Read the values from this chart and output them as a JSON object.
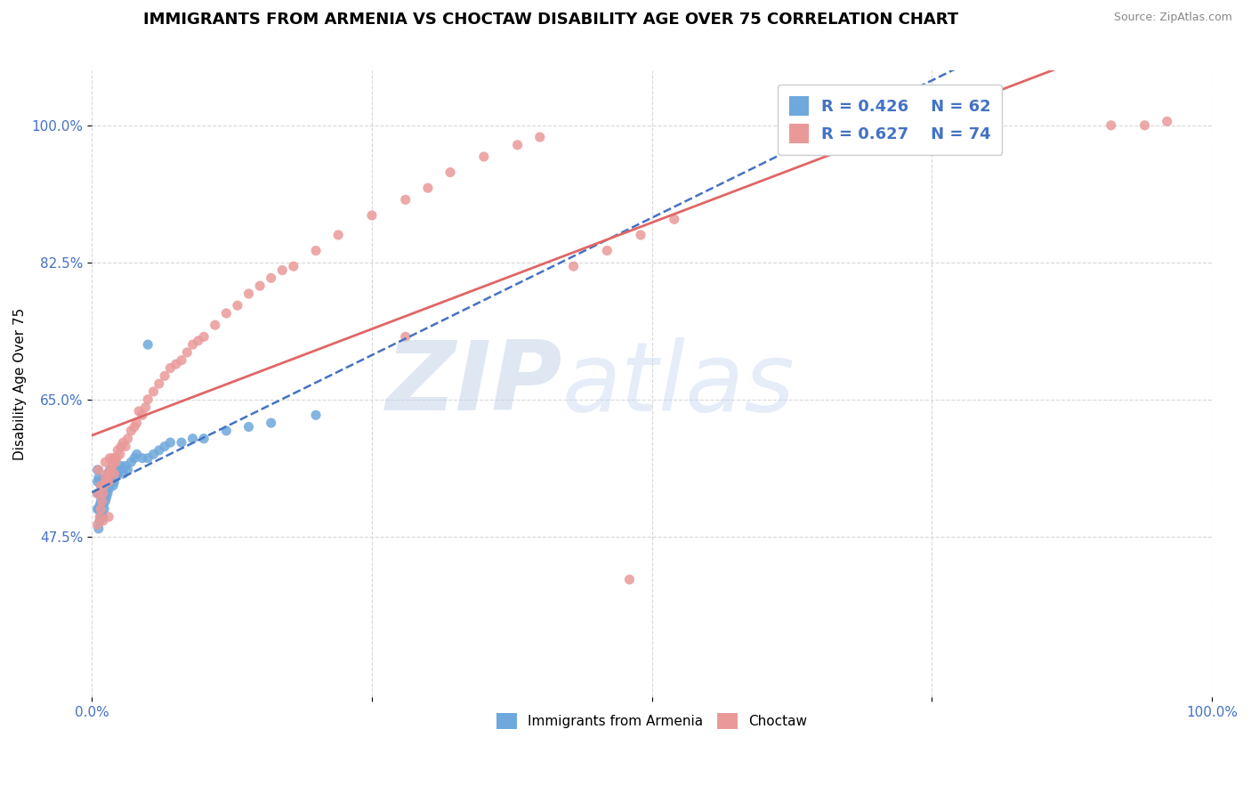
{
  "title": "IMMIGRANTS FROM ARMENIA VS CHOCTAW DISABILITY AGE OVER 75 CORRELATION CHART",
  "source_text": "Source: ZipAtlas.com",
  "ylabel": "Disability Age Over 75",
  "xlim": [
    0.0,
    1.0
  ],
  "ylim": [
    0.27,
    1.07
  ],
  "yticks": [
    0.475,
    0.65,
    0.825,
    1.0
  ],
  "ytick_labels": [
    "47.5%",
    "65.0%",
    "82.5%",
    "100.0%"
  ],
  "xtick_labels": [
    "0.0%",
    "",
    "",
    "",
    "100.0%"
  ],
  "legend_R1": "R = 0.426",
  "legend_N1": "N = 62",
  "legend_R2": "R = 0.627",
  "legend_N2": "N = 74",
  "color_blue": "#6fa8dc",
  "color_pink": "#ea9999",
  "color_blue_line": "#4472c4",
  "color_pink_line": "#e06666",
  "legend_text_color": "#4472c4",
  "axis_color": "#4472c4",
  "grid_color": "#c8c8c8",
  "title_fontsize": 13,
  "axis_label_fontsize": 11,
  "tick_fontsize": 11,
  "blue_x": [
    0.005,
    0.005,
    0.005,
    0.005,
    0.006,
    0.006,
    0.006,
    0.006,
    0.007,
    0.007,
    0.008,
    0.008,
    0.008,
    0.009,
    0.009,
    0.009,
    0.01,
    0.01,
    0.01,
    0.01,
    0.011,
    0.011,
    0.012,
    0.012,
    0.013,
    0.013,
    0.014,
    0.014,
    0.015,
    0.015,
    0.016,
    0.016,
    0.017,
    0.018,
    0.019,
    0.02,
    0.02,
    0.021,
    0.022,
    0.023,
    0.025,
    0.026,
    0.028,
    0.03,
    0.032,
    0.035,
    0.038,
    0.04,
    0.045,
    0.05,
    0.055,
    0.06,
    0.065,
    0.07,
    0.08,
    0.09,
    0.1,
    0.12,
    0.14,
    0.16,
    0.2,
    0.05
  ],
  "blue_y": [
    0.51,
    0.53,
    0.545,
    0.56,
    0.485,
    0.51,
    0.53,
    0.55,
    0.495,
    0.515,
    0.5,
    0.52,
    0.54,
    0.505,
    0.525,
    0.545,
    0.5,
    0.515,
    0.53,
    0.548,
    0.51,
    0.535,
    0.52,
    0.545,
    0.525,
    0.55,
    0.53,
    0.555,
    0.535,
    0.555,
    0.54,
    0.56,
    0.545,
    0.55,
    0.54,
    0.545,
    0.56,
    0.555,
    0.56,
    0.555,
    0.56,
    0.565,
    0.555,
    0.565,
    0.56,
    0.57,
    0.575,
    0.58,
    0.575,
    0.575,
    0.58,
    0.585,
    0.59,
    0.595,
    0.595,
    0.6,
    0.6,
    0.61,
    0.615,
    0.62,
    0.63,
    0.72
  ],
  "pink_x": [
    0.005,
    0.005,
    0.006,
    0.007,
    0.008,
    0.008,
    0.009,
    0.01,
    0.01,
    0.011,
    0.012,
    0.012,
    0.013,
    0.014,
    0.015,
    0.015,
    0.016,
    0.016,
    0.017,
    0.018,
    0.019,
    0.02,
    0.02,
    0.021,
    0.022,
    0.023,
    0.025,
    0.026,
    0.028,
    0.03,
    0.032,
    0.035,
    0.038,
    0.04,
    0.042,
    0.045,
    0.048,
    0.05,
    0.055,
    0.06,
    0.065,
    0.07,
    0.075,
    0.08,
    0.085,
    0.09,
    0.095,
    0.1,
    0.11,
    0.12,
    0.13,
    0.14,
    0.15,
    0.16,
    0.17,
    0.18,
    0.2,
    0.22,
    0.25,
    0.28,
    0.3,
    0.32,
    0.35,
    0.38,
    0.4,
    0.43,
    0.46,
    0.49,
    0.52,
    0.28,
    0.91,
    0.94,
    0.96,
    0.48
  ],
  "pink_y": [
    0.49,
    0.53,
    0.56,
    0.5,
    0.51,
    0.54,
    0.52,
    0.495,
    0.53,
    0.54,
    0.55,
    0.57,
    0.545,
    0.555,
    0.5,
    0.545,
    0.555,
    0.575,
    0.56,
    0.565,
    0.575,
    0.555,
    0.575,
    0.57,
    0.575,
    0.585,
    0.58,
    0.59,
    0.595,
    0.59,
    0.6,
    0.61,
    0.615,
    0.62,
    0.635,
    0.63,
    0.64,
    0.65,
    0.66,
    0.67,
    0.68,
    0.69,
    0.695,
    0.7,
    0.71,
    0.72,
    0.725,
    0.73,
    0.745,
    0.76,
    0.77,
    0.785,
    0.795,
    0.805,
    0.815,
    0.82,
    0.84,
    0.86,
    0.885,
    0.905,
    0.92,
    0.94,
    0.96,
    0.975,
    0.985,
    0.82,
    0.84,
    0.86,
    0.88,
    0.73,
    1.0,
    1.0,
    1.005,
    0.42
  ]
}
